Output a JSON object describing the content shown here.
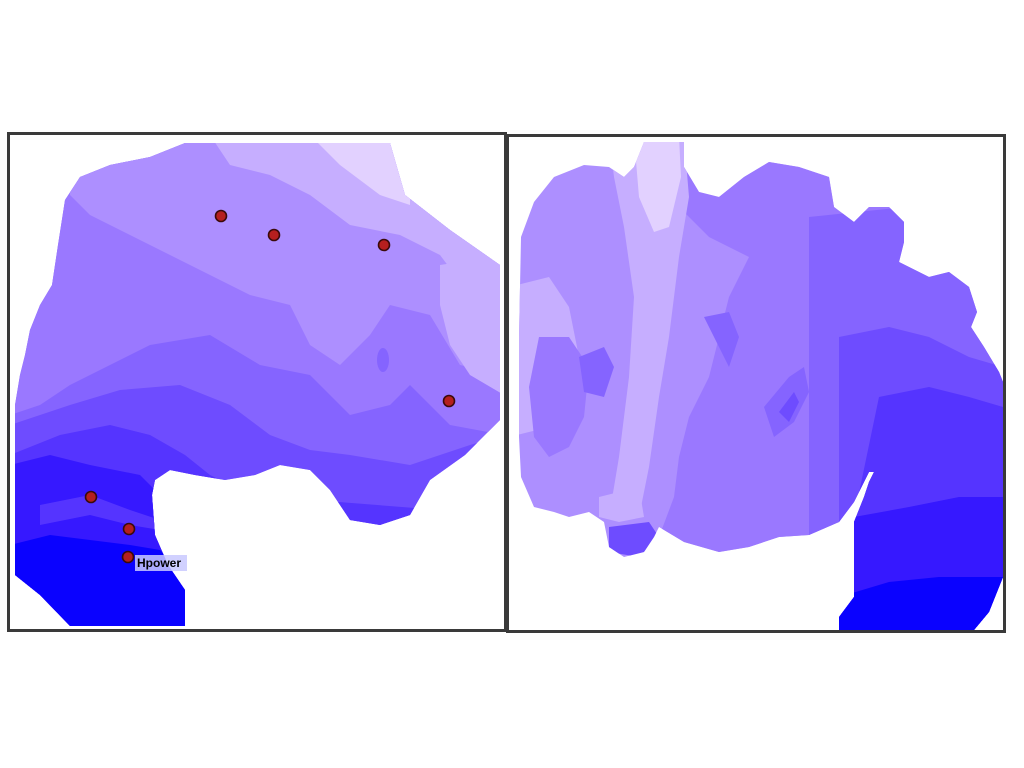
{
  "colors": {
    "outline": "#3a3a3a",
    "band_1": "#e2d1ff",
    "band_2": "#c6aeff",
    "band_3": "#ad8fff",
    "band_4": "#9a78ff",
    "band_5": "#8564ff",
    "band_6": "#6e4cff",
    "band_7": "#5534ff",
    "band_8": "#3618ff",
    "band_9": "#0a02ff",
    "marker_fill": "#b51f1f",
    "marker_stroke": "#3b0a0a",
    "label_bg": "#c9c9ff"
  },
  "left_map": {
    "markers": [
      {
        "name": "marker-1"
      },
      {
        "name": "marker-2"
      },
      {
        "name": "marker-3"
      },
      {
        "name": "marker-4"
      },
      {
        "name": "marker-5"
      },
      {
        "name": "marker-6"
      },
      {
        "name": "marker-7",
        "label": "Hpower"
      }
    ]
  },
  "right_map": {
    "markers": []
  }
}
